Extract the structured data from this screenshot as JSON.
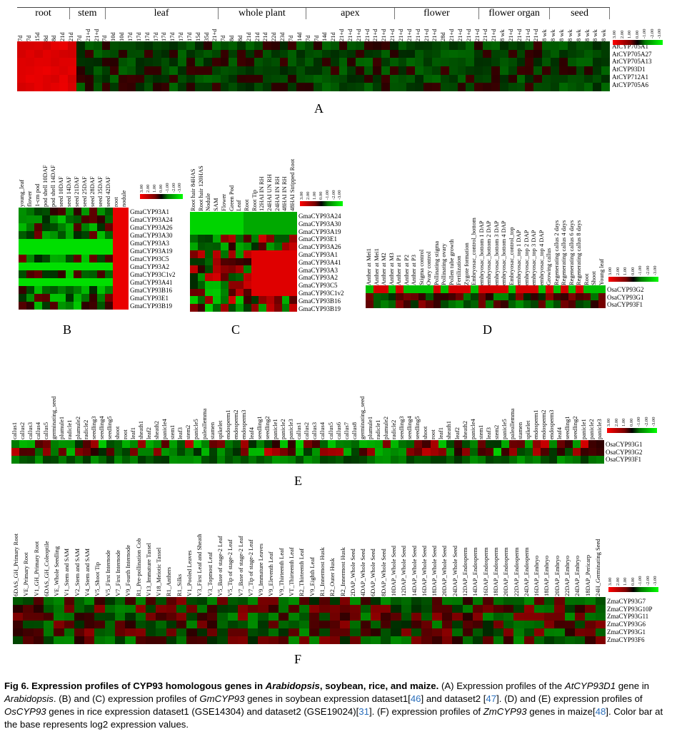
{
  "panelA": {
    "label": "A",
    "groups": [
      "root",
      "stem",
      "leaf",
      "whole plant",
      "apex",
      "flower",
      "flower organ",
      "seed"
    ],
    "columns": [
      "7d",
      "7d",
      "15d",
      "8d",
      "8d",
      "21d",
      "21d",
      "7d",
      "21+d",
      "21+d",
      "7d",
      "10d",
      "10d",
      "17d",
      "17d",
      "17d",
      "17d",
      "17d",
      "17d",
      "17d",
      "17d",
      "15d",
      "35d",
      "21+d",
      "7d",
      "8d",
      "8d",
      "21d",
      "21d",
      "21d",
      "22d",
      "23d",
      "7d",
      "14d",
      "7d",
      "7d",
      "14d",
      "21d",
      "21+d",
      "21+d",
      "21+d",
      "21+d",
      "21+d",
      "21+d",
      "21+d",
      "21+d",
      "21+d",
      "21+d",
      "21+d",
      "21+d",
      "28d",
      "21+d",
      "21+d",
      "21+d",
      "21+d",
      "21+d",
      "21+d",
      "8 wk",
      "21+d",
      "21+d",
      "21+d",
      "21+d",
      "8 wk",
      "8 wk",
      "8 wk",
      "8 wk",
      "8 wk",
      "8 wk",
      "8 wk",
      "8 wk"
    ],
    "rows": [
      "AtCYP705A1",
      "AtCYP705A27",
      "AtCYP705A13",
      "AtCYP93D1",
      "AtCYP712A1",
      "AtCYP705A6"
    ],
    "colorbar": [
      "3.00",
      "2.00",
      "1.00",
      "0.00",
      "-1.00",
      "-2.00",
      "-3.00"
    ]
  },
  "panelB": {
    "label": "B",
    "columns": [
      "young_leaf",
      "flower",
      "1-cm pod",
      "pod shell 10DAF",
      "pod shell 14DAF",
      "seed 10DAF",
      "seed 14DAF",
      "seed 21DAF",
      "seed 25DAF",
      "seed 28DAF",
      "seed 35DAF",
      "seed 42DAF",
      "root",
      "nodule"
    ],
    "rows": [
      "GmaCYP93A1",
      "GmaCYP93A24",
      "GmaCYP93A26",
      "GmaCYP93A30",
      "GmaCYP93A3",
      "GmaCYP93A19",
      "GmaCYP93C5",
      "GmaCYP93A2",
      "GmaCYP93C1v2",
      "GmaCYP93A41",
      "GmaCYP93B16",
      "GmaCYP93E1",
      "GmaCYP93B19"
    ],
    "colorbar": [
      "3.00",
      "2.00",
      "1.00",
      "0.00",
      "-1.00",
      "-2.00",
      "-3.00"
    ]
  },
  "panelC": {
    "label": "C",
    "columns": [
      "Root hair 84HAS",
      "Root hair 120HAS",
      "Nodule",
      "SAM",
      "Flower",
      "Green Pod",
      "Leaf",
      "Root",
      "Root Tip",
      "12HAI IN RH",
      "24HAI UN RH",
      "24HAI IN RH",
      "48HAI IN RH",
      "48HAI Stripped Root"
    ],
    "rows": [
      "GmaCYP93A24",
      "GmaCYP93A30",
      "GmaCYP93A19",
      "GmaCYP93E1",
      "GmaCYP93A26",
      "GmaCYP93A1",
      "GmaCYP93A41",
      "GmaCYP93A3",
      "GmaCYP93A2",
      "GmaCYP93C5",
      "GmaCYP93C1v2",
      "GmaCYP93B16",
      "GmaCYP93B19"
    ],
    "colorbar": [
      "3.00",
      "2.00",
      "1.00",
      "0.00",
      "-1.00",
      "-2.00",
      "-3.00"
    ]
  },
  "panelD": {
    "label": "D",
    "columns": [
      "Anther at Mei1",
      "Anther at Mei1",
      "Anther at M2",
      "Anther at M3",
      "Anther at P1",
      "Anther at P2",
      "Anther at P3",
      "Stigma control",
      "Ovary control",
      "Pollinating stigma",
      "Pollinating ovary",
      "Pollen tube growth",
      "Fertilization",
      "Zygote formation",
      "Embryosac_control_bottom",
      "embryosac_bottom 1 DAP",
      "embryosac_bottom 2 DAP",
      "embryosac_bottom 3 DAP",
      "embryosac_bottom 4 DAP",
      "Embryosac_control_top",
      "embryosac_top 1 DAP",
      "embryosac_top 2 DAP",
      "embryosac_top 3 DAP",
      "embryosac_top 4 DAP",
      "Growing callus",
      "Regenerating callus 2 days",
      "Regenerating callus 4 days",
      "Regenerating callus 6 days",
      "Regenerating callus 8 days",
      "Root",
      "Shoot",
      "Young leaf"
    ],
    "rows": [
      "OsaCYP93G2",
      "OsaCYP93G1",
      "OsaCYP93F1"
    ],
    "colorbar": [
      "3.00",
      "2.00",
      "1.00",
      "0.00",
      "-1.00",
      "-2.00",
      "-3.00"
    ]
  },
  "panelE": {
    "label": "E",
    "columns": [
      "callus1",
      "callus2",
      "callus3",
      "callus4",
      "callus5",
      "germinating_seed",
      "plumule1",
      "radicle1",
      "plumule2",
      "radicle2",
      "seedling3",
      "seedling4",
      "seedling5",
      "shoot",
      "root",
      "leaf1",
      "sheath1",
      "leaf2",
      "sheath2",
      "panicle4",
      "stem1",
      "leaf3",
      "stem2",
      "panicle5",
      "paleallemma",
      "stamen",
      "spikelet",
      "endosperm1",
      "endosperm2",
      "endosperm3",
      "leaf4",
      "seedling1",
      "seedling2",
      "panicle1",
      "panicle2",
      "panicle3",
      "callus1",
      "callus2",
      "callus3",
      "callus4",
      "callus5",
      "callus6",
      "callus7",
      "callus8",
      "germinating_seed",
      "plumule1",
      "radicle1",
      "plumule2",
      "radicle2",
      "seedling3",
      "seedling4",
      "seedling5",
      "shoot",
      "root",
      "leaf1",
      "sheath1",
      "leaf2",
      "sheath2",
      "panicle4",
      "stem1",
      "leaf3",
      "stem2",
      "panicle5",
      "paleallemma",
      "stamen",
      "spikelet",
      "endosperm1",
      "endosperm2",
      "endosperm3",
      "leaf4",
      "seedling1",
      "seedling2",
      "panicle1",
      "panicle2",
      "panicle3"
    ],
    "rows": [
      "OsaCYP93G1",
      "OsaCYP93G2",
      "OsaCYP93F1"
    ],
    "colorbar": [
      "3.00",
      "2.00",
      "1.00",
      "0.00",
      "-1.00",
      "-2.00",
      "-3.00"
    ]
  },
  "panelF": {
    "label": "F",
    "columns": [
      "6DAS_GH_Primary Root",
      "VE_Primary Root",
      "V1_GH_Primary Root",
      "6DAS_GH_Coleoptile",
      "VE_Whole Seedling",
      "V1_Stem and SAM",
      "V2_Stem and SAM",
      "V4_Stem and SAM",
      "V5_Shoot Tip",
      "V5_First Internode",
      "V7_First Internode",
      "V9_Fourth Internode",
      "R1_Pre-pollination Cob",
      "V13_Immature Tassel",
      "V18_Meiotic Tassel",
      "R1_Anthers",
      "R1_Silks",
      "V1_Pooled Leaves",
      "V3_First Leaf and Sheath",
      "V3_Topmost Leaf",
      "V5_Base of stage-2 Leaf",
      "V5_Tip of stage-2 Leaf",
      "V7_Base of stage-2 Leaf",
      "V7_Tip of stage-2 Leaf",
      "V9_Immature Leaves",
      "V9_Eleventh Leaf",
      "V9_Thirteenth Leaf",
      "VT_Thirteenth Leaf",
      "R2_Thirteenth Leaf",
      "V9_Eighth Leaf",
      "R1_Innermost Husk",
      "R2_Outer Husk",
      "R2_Innermost Husk",
      "2DAP_Whole Seed",
      "4DAP_Whole Seed",
      "6DAP_Whole Seed",
      "8DAP_Whole Seed",
      "10DAP_Whole Seed",
      "12DAP_Whole Seed",
      "14DAP_Whole Seed",
      "16DAP_Whole Seed",
      "18DAP_Whole Seed",
      "20DAP_Whole Seed",
      "24DAP_Whole Seed",
      "12DAP_Endosperm",
      "14DAP_Endosperm",
      "16DAP_Endosperm",
      "18DAP_Endosperm",
      "20DAP_Endosperm",
      "22DAP_Endosperm",
      "24DAP_Endosperm",
      "16DAP_Embryo",
      "18DAP_Embryo",
      "20DAP_Embryo",
      "22DAP_Embryo",
      "24DAP_Embryo",
      "18DAP_Pericarp",
      "24H_Germinating Seed"
    ],
    "rows": [
      "ZmaCYP93G7",
      "ZmaCYP93G10P",
      "ZmaCYP93G11",
      "ZmaCYP93G6",
      "ZmaCYP93G1",
      "ZmaCYP93F6"
    ],
    "colorbar": [
      "3.00",
      "2.00",
      "1.00",
      "0.00",
      "-1.00",
      "-2.00",
      "-3.00"
    ]
  },
  "caption": {
    "fig": "Fig 6.",
    "title_a": "Expression profiles of CYP93 homologous genes in ",
    "title_arab": "Arabidopsis",
    "title_b": ", soybean, rice, and maize.",
    "t1": " (A) Expression profiles of the ",
    "gene1": "AtCYP93D1",
    "t2": " gene in ",
    "arab": "Arabidopsis",
    "t3": ". (B) and (C) expression profiles of ",
    "gene2": "GmCYP93",
    "t4": " genes in soybean expression dataset1[",
    "ref1": "46",
    "t5": "] and dataset2 [",
    "ref2": "47",
    "t6": "]. (D) and (E) expression profiles of ",
    "gene3": "OsCYP93",
    "t7": " genes in rice expression dataset1 (GSE14304) and dataset2 (GSE19024)[",
    "ref3": "31",
    "t8": "]. (F) expression profiles of ",
    "gene4": "ZmCYP93",
    "t9": " genes in maize[",
    "ref4": "48",
    "t10": "]. Color bar at the base represents log2 expression values."
  }
}
